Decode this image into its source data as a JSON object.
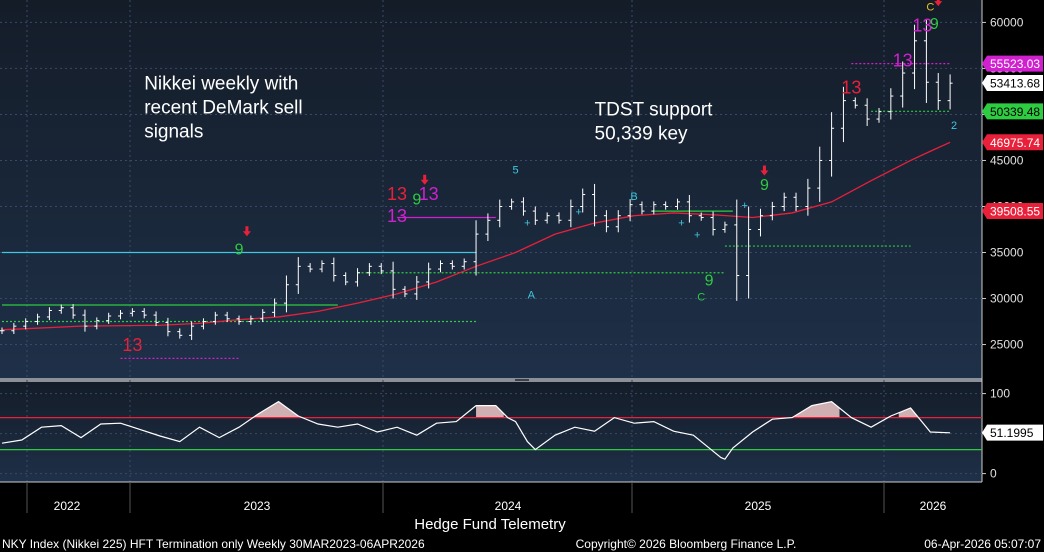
{
  "chart_data": {
    "type": "line",
    "title": "",
    "xaxis": {
      "labels": [
        "2022",
        "2023",
        "2024",
        "2025",
        "2026"
      ],
      "caption": "Hedge Fund Telemetry"
    },
    "price_axis": {
      "ticks": [
        "60000",
        "55000",
        "50000",
        "45000",
        "40000",
        "35000",
        "30000",
        "25000"
      ],
      "tick_values": [
        60000,
        55000,
        50000,
        45000,
        40000,
        35000,
        30000,
        25000
      ],
      "ylim": [
        21800,
        62000
      ],
      "price_tags": [
        {
          "label": "55523.03",
          "value": 55523,
          "color": "#d020d0",
          "text_color": "#ffffff"
        },
        {
          "label": "53413.68",
          "value": 53414,
          "color": "#ffffff",
          "text_color": "#000000"
        },
        {
          "label": "50339.48",
          "value": 50339,
          "color": "#2ecc40",
          "text_color": "#000000"
        },
        {
          "label": "46975.74",
          "value": 46976,
          "color": "#e8203a",
          "text_color": "#ffffff"
        },
        {
          "label": "39508.55",
          "value": 39509,
          "color": "#e8203a",
          "text_color": "#ffffff"
        }
      ]
    },
    "osc_axis": {
      "ticks": [
        "100",
        "50",
        "0"
      ],
      "tick_values": [
        100,
        50,
        0
      ],
      "ylim": [
        -8,
        112
      ],
      "upper": 70,
      "lower": 30,
      "current_tag": "51.1995",
      "current_value": 51.2
    },
    "price_series": {
      "name": "",
      "color": "#ffffff",
      "x": [
        0,
        3,
        6,
        9,
        12,
        15,
        18,
        21,
        24,
        27,
        30,
        33,
        36,
        39,
        42,
        45,
        48,
        51,
        54,
        57,
        60,
        63,
        66,
        69,
        72,
        75,
        78,
        81,
        84,
        87,
        90,
        93,
        96,
        99,
        102,
        105,
        108,
        111,
        114,
        117,
        120,
        123,
        126,
        129,
        132,
        135,
        138,
        141,
        144,
        147,
        150,
        153,
        156,
        159,
        162,
        165,
        168,
        171,
        174,
        177,
        180,
        183,
        186,
        189,
        192,
        195,
        198,
        201,
        204,
        207,
        210,
        213,
        216,
        219,
        222,
        225,
        228,
        231,
        234,
        237,
        240
      ],
      "y": [
        26500,
        27000,
        27500,
        28000,
        28700,
        29000,
        28200,
        27000,
        27600,
        28100,
        28400,
        28600,
        28200,
        27400,
        26400,
        26000,
        27000,
        27500,
        28200,
        27800,
        27500,
        27800,
        28500,
        29500,
        31500,
        33500,
        33200,
        33800,
        32500,
        31800,
        32800,
        33500,
        33000,
        31000,
        30500,
        31800,
        33200,
        33800,
        33500,
        34000,
        37000,
        38500,
        40000,
        40500,
        39500,
        38500,
        39000,
        38500,
        40000,
        41300,
        39000,
        37800,
        39000,
        40200,
        39500,
        40200,
        40000,
        40500,
        39000,
        38800,
        37500,
        38000,
        32500,
        37500,
        39000,
        40000,
        41000,
        40000,
        42000,
        45000,
        48500,
        51500,
        51000,
        49500,
        50300,
        52000,
        54500,
        58000,
        53500,
        51500,
        53400
      ]
    },
    "ma_series": {
      "name": "",
      "color": "#e8203a",
      "x": [
        0,
        20,
        40,
        50,
        60,
        70,
        80,
        90,
        100,
        110,
        120,
        130,
        140,
        150,
        160,
        170,
        180,
        190,
        200,
        210,
        220,
        230,
        235,
        240
      ],
      "y": [
        26600,
        27000,
        27100,
        27300,
        27700,
        28000,
        28600,
        29500,
        30500,
        31800,
        33500,
        35000,
        37000,
        38200,
        39000,
        39300,
        39100,
        38800,
        39300,
        40500,
        42800,
        45000,
        46000,
        46976
      ]
    },
    "oscillator": {
      "name": "",
      "color": "#ffffff",
      "x": [
        0,
        5,
        10,
        15,
        20,
        25,
        30,
        35,
        40,
        45,
        50,
        55,
        60,
        65,
        70,
        75,
        80,
        85,
        90,
        95,
        100,
        105,
        110,
        115,
        120,
        125,
        128,
        130,
        133,
        135,
        140,
        145,
        150,
        155,
        160,
        165,
        170,
        175,
        180,
        182,
        183,
        185,
        190,
        195,
        200,
        205,
        210,
        215,
        220,
        225,
        230,
        235,
        240
      ],
      "y": [
        38,
        42,
        58,
        60,
        45,
        62,
        63,
        55,
        47,
        40,
        58,
        45,
        58,
        75,
        90,
        72,
        62,
        58,
        62,
        52,
        58,
        48,
        63,
        65,
        85,
        85,
        70,
        65,
        40,
        30,
        48,
        58,
        53,
        70,
        63,
        65,
        53,
        48,
        28,
        20,
        18,
        32,
        52,
        68,
        70,
        85,
        90,
        70,
        58,
        72,
        82,
        52,
        51
      ]
    },
    "oscillator_highlights": [
      {
        "from": 64,
        "to": 76
      },
      {
        "from": 120,
        "to": 127
      },
      {
        "from": 200,
        "to": 212
      },
      {
        "from": 227,
        "to": 233
      }
    ],
    "levels": [
      {
        "value": 35000,
        "from": 0,
        "to": 120,
        "color": "#40c8e0",
        "style": "solid"
      },
      {
        "value": 29300,
        "from": 0,
        "to": 85,
        "color": "#2ecc40",
        "style": "solid"
      },
      {
        "value": 27500,
        "from": 0,
        "to": 120,
        "color": "#2ecc40",
        "style": "dotted"
      },
      {
        "value": 32800,
        "from": 90,
        "to": 183,
        "color": "#2ecc40",
        "style": "dotted"
      },
      {
        "value": 35700,
        "from": 183,
        "to": 230,
        "color": "#2ecc40",
        "style": "dotted"
      },
      {
        "value": 38800,
        "from": 100,
        "to": 125,
        "color": "#d020d0",
        "style": "solid"
      },
      {
        "value": 23500,
        "from": 30,
        "to": 60,
        "color": "#d020d0",
        "style": "dotted"
      },
      {
        "value": 39500,
        "from": 165,
        "to": 185,
        "color": "#2ecc40",
        "style": "solid"
      },
      {
        "value": 50339,
        "from": 220,
        "to": 240,
        "color": "#2ecc40",
        "style": "dotted"
      },
      {
        "value": 55523,
        "from": 215,
        "to": 240,
        "color": "#d020d0",
        "style": "dotted"
      }
    ],
    "signals": [
      {
        "label": "13",
        "x": 33,
        "value": 24300,
        "color": "#e8203a",
        "size": 18
      },
      {
        "label": "9",
        "x": 60,
        "value": 34800,
        "color": "#2ecc40",
        "size": 16
      },
      {
        "label": "13",
        "x": 100,
        "value": 40700,
        "color": "#e8203a",
        "size": 18
      },
      {
        "label": "13",
        "x": 100,
        "value": 38300,
        "color": "#d020d0",
        "size": 18
      },
      {
        "label": "9",
        "x": 105,
        "value": 40200,
        "color": "#2ecc40",
        "size": 16
      },
      {
        "label": "13",
        "x": 108,
        "value": 40700,
        "color": "#d020d0",
        "size": 18
      },
      {
        "label": "5",
        "x": 130,
        "value": 43600,
        "color": "#40c8e0",
        "size": 11
      },
      {
        "label": "A",
        "x": 134,
        "value": 30000,
        "color": "#40c8e0",
        "size": 11
      },
      {
        "label": "B",
        "x": 160,
        "value": 40700,
        "color": "#40c8e0",
        "size": 11
      },
      {
        "label": "9",
        "x": 179,
        "value": 31400,
        "color": "#2ecc40",
        "size": 16
      },
      {
        "label": "C",
        "x": 177,
        "value": 29800,
        "color": "#2ecc40",
        "size": 11
      },
      {
        "label": "9",
        "x": 193,
        "value": 41800,
        "color": "#2ecc40",
        "size": 16
      },
      {
        "label": "13",
        "x": 215,
        "value": 52300,
        "color": "#e8203a",
        "size": 18
      },
      {
        "label": "13",
        "x": 228,
        "value": 55200,
        "color": "#d020d0",
        "size": 18
      },
      {
        "label": "13",
        "x": 233,
        "value": 59000,
        "color": "#d020d0",
        "size": 18
      },
      {
        "label": "9",
        "x": 236,
        "value": 59300,
        "color": "#2ecc40",
        "size": 16
      },
      {
        "label": "C",
        "x": 235,
        "value": 61300,
        "color": "#e8c020",
        "size": 11
      },
      {
        "label": "2",
        "x": 241,
        "value": 48400,
        "color": "#40c8e0",
        "size": 11
      }
    ],
    "arrows": [
      {
        "x": 62,
        "value": 37200
      },
      {
        "x": 107,
        "value": 42800
      },
      {
        "x": 193,
        "value": 43800
      },
      {
        "x": 237,
        "value": 62200
      }
    ],
    "crosses": [
      {
        "x": 133,
        "value": 37800
      },
      {
        "x": 146,
        "value": 39000
      },
      {
        "x": 172,
        "value": 37800
      },
      {
        "x": 176,
        "value": 36500
      },
      {
        "x": 188,
        "value": 39700
      }
    ],
    "annotations": [
      {
        "lines": [
          "Nikkei weekly with",
          "recent DeMark sell",
          "signals"
        ],
        "x": 36,
        "value": 52700
      },
      {
        "lines": [
          "TDST support",
          "50,339 key"
        ],
        "x": 150,
        "value": 49900
      }
    ]
  },
  "footer": {
    "left": "NKY Index (Nikkei 225) HFT Termination only Weekly 30MAR2023-06APR2026",
    "center": "Copyright© 2026 Bloomberg Finance L.P.",
    "right": "06-Apr-2026 05:07:07"
  },
  "colors": {
    "background": "#000000",
    "panel_top": "#141c28",
    "panel_bottom": "#1e3048",
    "grid": "#3a4a64",
    "axis_text": "#e0e0e0"
  }
}
